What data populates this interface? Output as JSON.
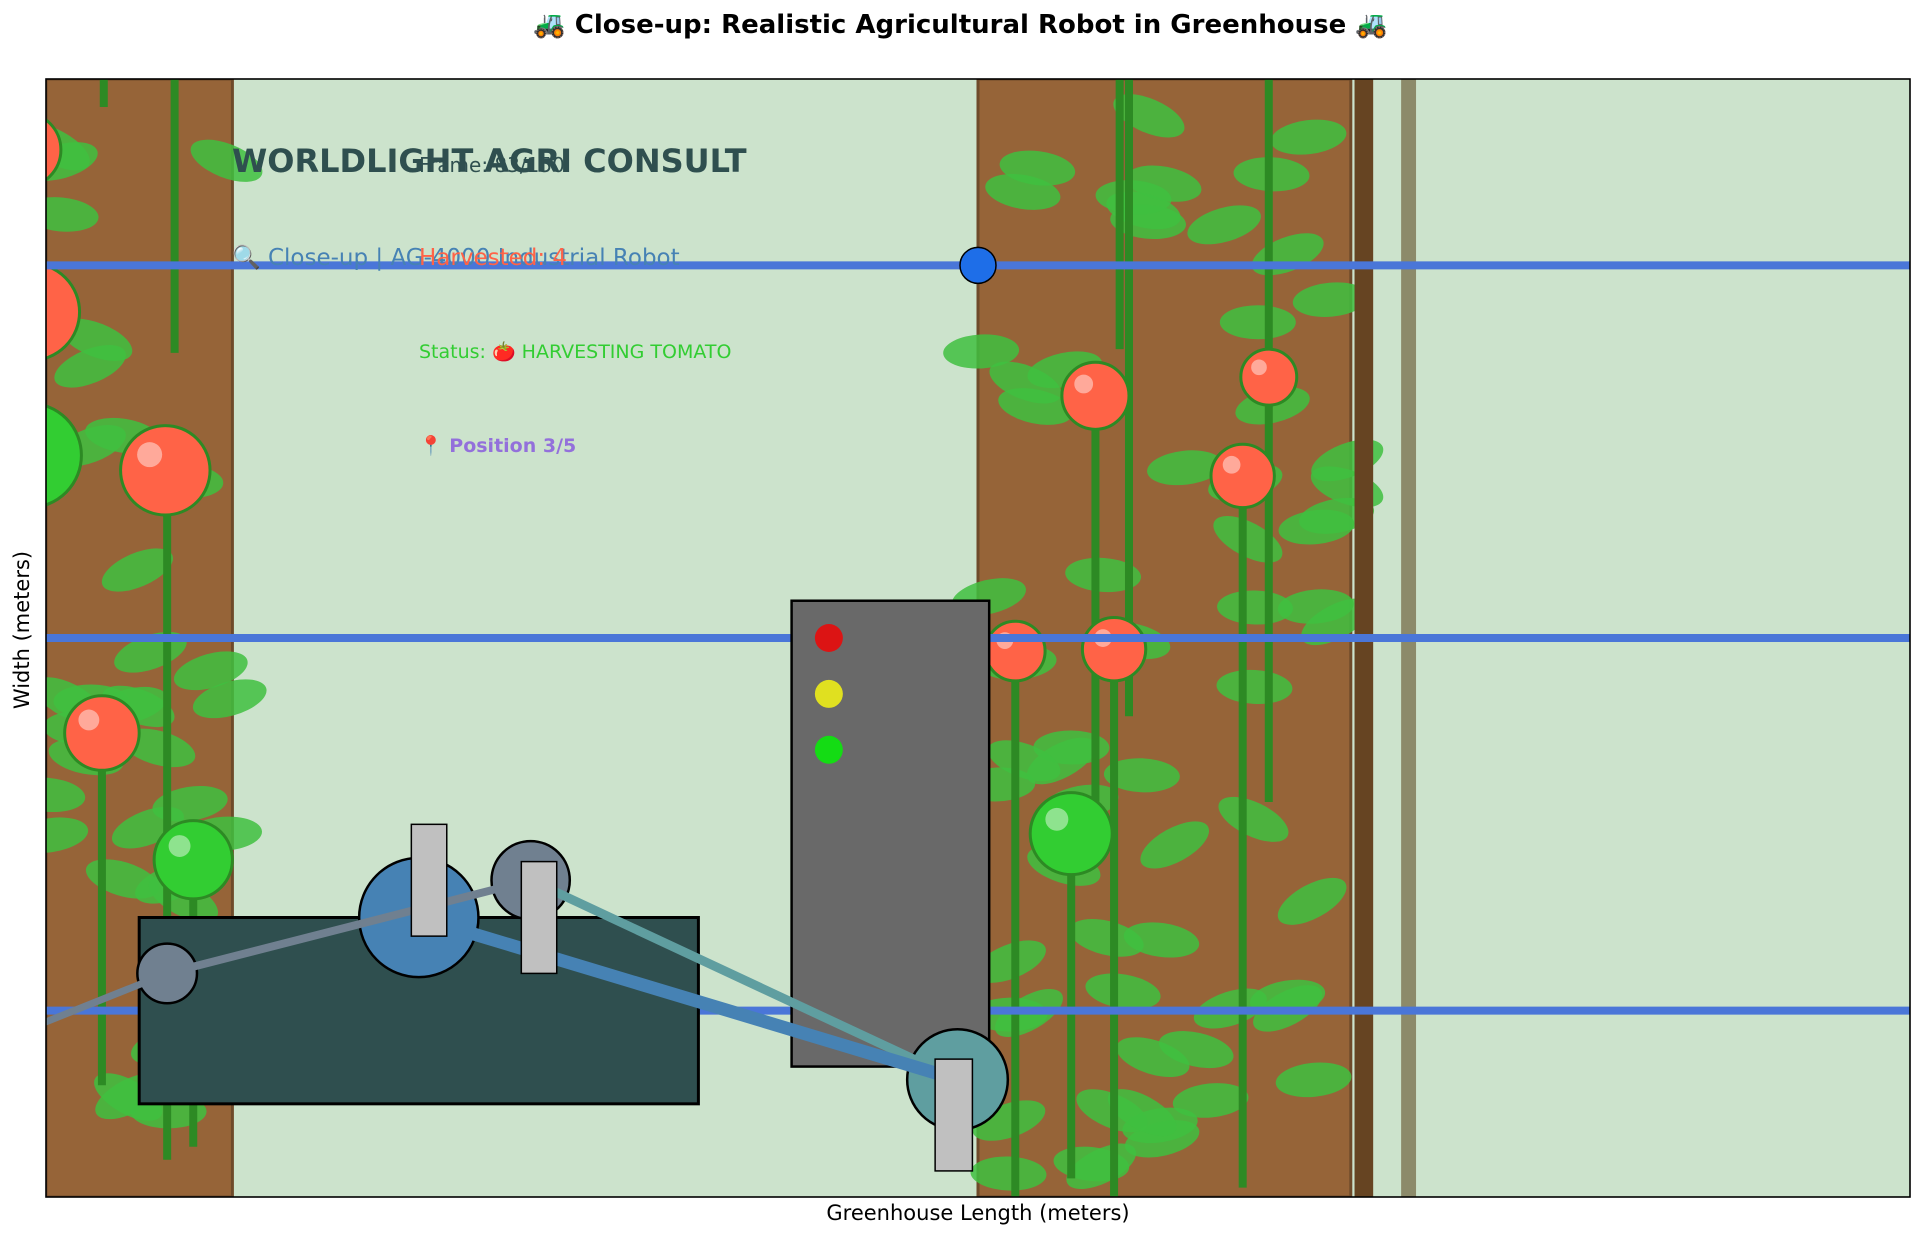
{
  "chart_data": {
    "type": "scatter",
    "title": "🚜 Close-up: Realistic Agricultural Robot in Greenhouse 🚜",
    "xlabel": "Greenhouse Length (meters)",
    "ylabel": "Width (meters)",
    "xlim": [
      0,
      100
    ],
    "ylim": [
      0,
      60
    ],
    "ticks_visible": false,
    "grid": false,
    "colors": {
      "background": "#cce3cc",
      "soil": "#966438",
      "soil_edge": "#6e4a2a",
      "post": "#8c8a6a",
      "rail": "#4a76d8",
      "plant_stem": "#2d8a24",
      "leaf": "#40c040",
      "tomato_ripe": "#ff6347",
      "tomato_unripe": "#32cd32",
      "robot_base": "#2f4f4f",
      "robot_tower": "#696969",
      "joint_shoulder": "#4682b4",
      "joint_elbow": "#708090",
      "joint_wrist": "#5f9ea0",
      "arm_segment_1": "#708090",
      "arm_segment_2": "#4682b4",
      "arm_segment_3": "#5f9ea0",
      "actuator": "#c0c0c0",
      "led_red": "#dc1414",
      "led_yellow": "#e0e020",
      "led_green": "#14dc14",
      "rail_marker": "#1e6ee8"
    },
    "soil_beds": [
      {
        "x0": 0,
        "x1": 10
      },
      {
        "x0": 50,
        "x1": 70
      }
    ],
    "support_posts": [
      {
        "x": 70.2,
        "width": 1.0
      },
      {
        "x": 72.7,
        "width": 0.8
      }
    ],
    "rails_y": [
      10,
      30,
      50
    ],
    "rail_marker": {
      "x": 50,
      "y": 50
    },
    "plant_stems": [
      {
        "x": 3.1,
        "y0": 58.5,
        "y1": 60
      },
      {
        "x": 6.9,
        "y0": 45.3,
        "y1": 60
      },
      {
        "x": 6.5,
        "y0": 2.0,
        "y1": 39.0
      },
      {
        "x": 3.0,
        "y0": 6.0,
        "y1": 24.9
      },
      {
        "x": 7.9,
        "y0": 2.7,
        "y1": 18.1
      },
      {
        "x": 57.6,
        "y0": 45.5,
        "y1": 60
      },
      {
        "x": 58.1,
        "y0": 25.8,
        "y1": 60
      },
      {
        "x": 65.6,
        "y0": 21.2,
        "y1": 60
      },
      {
        "x": 56.3,
        "y0": 19.5,
        "y1": 43.0
      },
      {
        "x": 57.3,
        "y0": 0,
        "y1": 29.4
      },
      {
        "x": 52.0,
        "y0": 0,
        "y1": 29.3
      },
      {
        "x": 55.0,
        "y0": 1.0,
        "y1": 19.5
      },
      {
        "x": 64.2,
        "y0": 0.5,
        "y1": 38.7
      }
    ],
    "tomatoes": [
      {
        "x": -1.2,
        "y": 56.2,
        "r": 2.0,
        "ripe": true
      },
      {
        "x": -0.8,
        "y": 47.5,
        "r": 2.6,
        "ripe": true
      },
      {
        "x": -0.9,
        "y": 39.8,
        "r": 2.8,
        "ripe": false
      },
      {
        "x": 6.4,
        "y": 39.0,
        "r": 2.4,
        "ripe": true
      },
      {
        "x": 3.0,
        "y": 24.9,
        "r": 2.0,
        "ripe": true
      },
      {
        "x": 7.9,
        "y": 18.1,
        "r": 2.1,
        "ripe": false
      },
      {
        "x": 56.3,
        "y": 43.0,
        "r": 1.8,
        "ripe": true
      },
      {
        "x": 65.6,
        "y": 44.0,
        "r": 1.5,
        "ripe": true
      },
      {
        "x": 64.2,
        "y": 38.7,
        "r": 1.7,
        "ripe": true
      },
      {
        "x": 57.3,
        "y": 29.4,
        "r": 1.7,
        "ripe": true
      },
      {
        "x": 52.0,
        "y": 29.3,
        "r": 1.6,
        "ripe": true
      },
      {
        "x": 55.0,
        "y": 19.5,
        "r": 2.2,
        "ripe": false
      }
    ],
    "robot": {
      "base": {
        "x0": 5,
        "x1": 35,
        "y0": 5,
        "y1": 15
      },
      "tower": {
        "x0": 40,
        "x1": 50.6,
        "y0": 7,
        "y1": 32
      },
      "leds": [
        {
          "x": 42,
          "y": 30,
          "color": "red"
        },
        {
          "x": 42,
          "y": 27,
          "color": "yellow"
        },
        {
          "x": 42,
          "y": 24,
          "color": "green"
        }
      ],
      "joints": [
        {
          "name": "base-pivot",
          "x": 6.5,
          "y": 12.0,
          "r": 1.6
        },
        {
          "name": "shoulder",
          "x": 20,
          "y": 15,
          "r": 3.2
        },
        {
          "name": "elbow",
          "x": 26,
          "y": 17,
          "r": 2.1
        },
        {
          "name": "gripper",
          "x": 48.9,
          "y": 6.3,
          "r": 2.7
        }
      ],
      "arm_path": [
        {
          "x": -1,
          "y": 9
        },
        {
          "x": 6.5,
          "y": 12.0
        },
        {
          "x": 26,
          "y": 17
        },
        {
          "x": 48.9,
          "y": 6.3
        },
        {
          "x": 20,
          "y": 15
        }
      ],
      "actuators": [
        {
          "x0": 19.6,
          "x1": 21.5,
          "y0": 14,
          "y1": 20
        },
        {
          "x0": 25.5,
          "x1": 27.4,
          "y0": 12,
          "y1": 18
        },
        {
          "x0": 47.7,
          "x1": 49.7,
          "y0": 1.4,
          "y1": 7.4
        }
      ]
    },
    "annotations": {
      "brand": "WORLDLIGHT AGRI CONSULT",
      "frame": "Frame: 83/150",
      "subtitle": "🔍 Close-up | AG-4000 Industrial Robot",
      "harvested": "Harvested: 4",
      "status": "Status: 🍅 HARVESTING TOMATO",
      "position": "📍 Position 3/5"
    }
  }
}
